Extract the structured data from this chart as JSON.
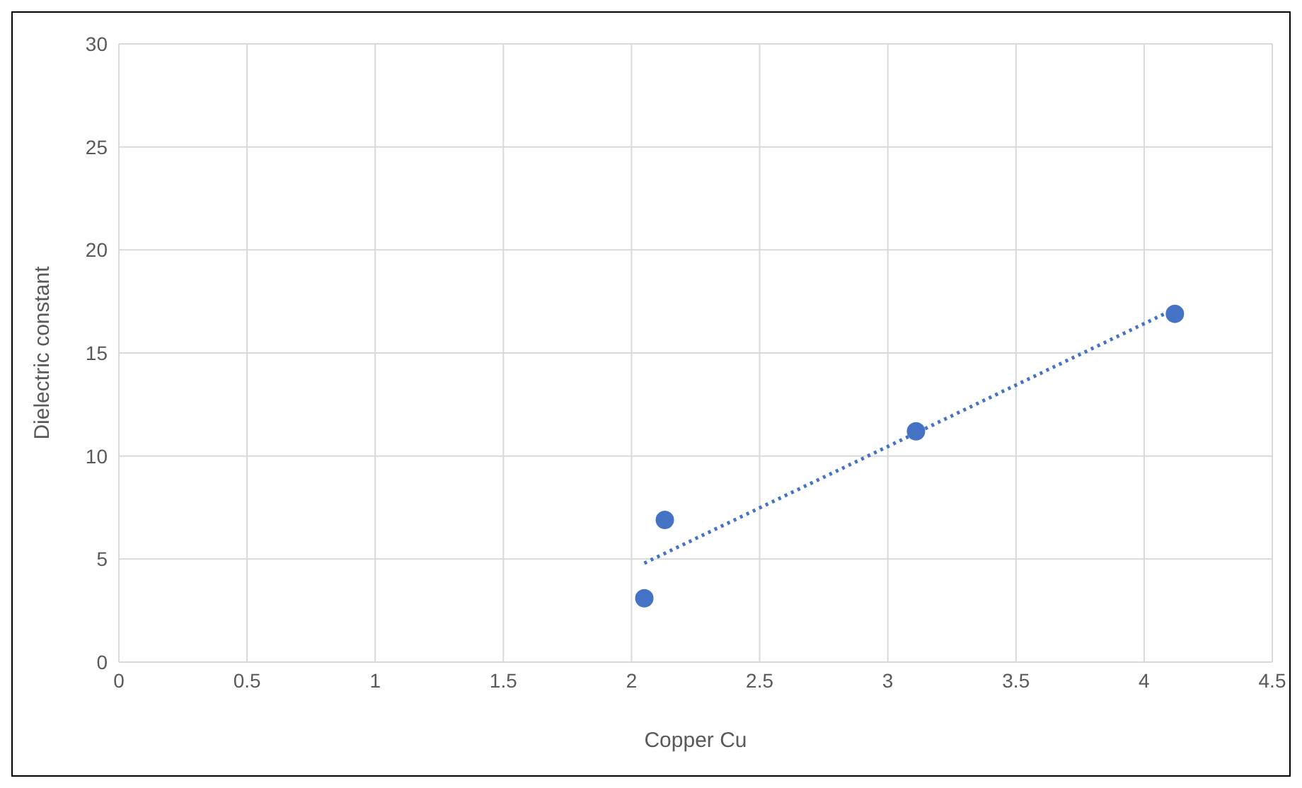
{
  "chart_data": {
    "type": "scatter",
    "xlabel": "Copper Cu",
    "ylabel": "Dielectric constant",
    "series": [
      {
        "color": "#4472c4",
        "x": [
          2.05,
          2.13,
          3.11,
          4.12
        ],
        "values": [
          3.1,
          6.9,
          11.2,
          16.9
        ],
        "marker": "circle"
      },
      {
        "type": "line",
        "color": "#4472c4",
        "x": [
          2.05,
          4.08
        ],
        "values": [
          4.8,
          16.9
        ],
        "line_style": "dotted",
        "marker": "none"
      }
    ],
    "xlim": [
      0,
      4.5
    ],
    "xticks": [
      0,
      0.5,
      1,
      1.5,
      2,
      2.5,
      3,
      3.5,
      4,
      4.5
    ],
    "ylim": [
      0,
      30
    ],
    "yticks": [
      0,
      5,
      10,
      15,
      20,
      25,
      30
    ],
    "grid": true,
    "legend": false
  }
}
